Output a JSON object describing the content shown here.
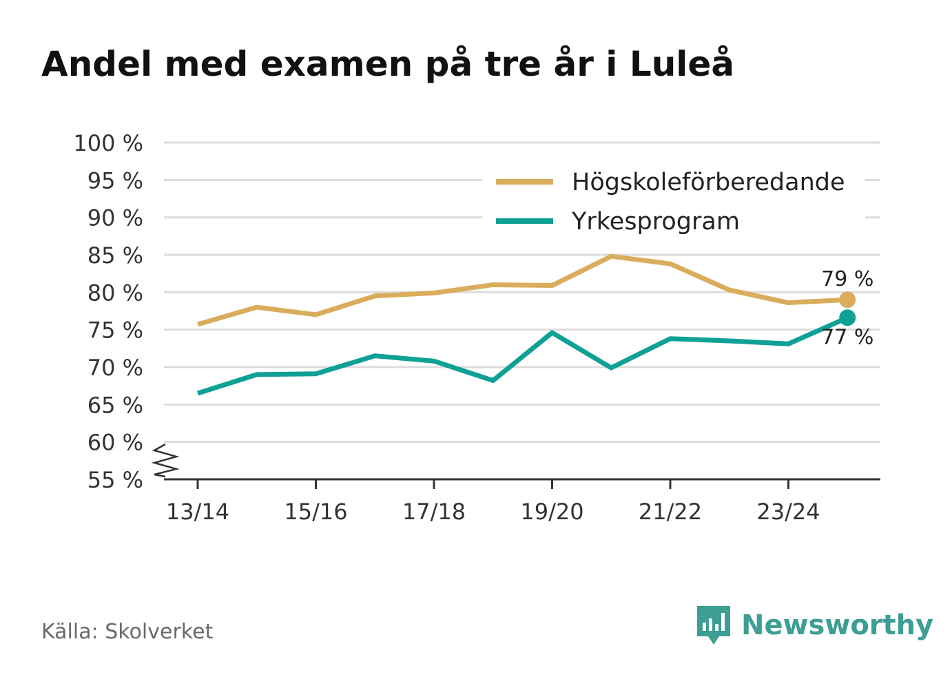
{
  "chart_data": {
    "type": "line",
    "title": "Andel med examen på tre år i Luleå",
    "categories": [
      "13/14",
      "14/15",
      "15/16",
      "16/17",
      "17/18",
      "18/19",
      "19/20",
      "20/21",
      "21/22",
      "22/23",
      "23/24",
      "24/25"
    ],
    "x_tick_labels": [
      "13/14",
      "15/16",
      "17/18",
      "19/20",
      "21/22",
      "23/24"
    ],
    "y_tick_labels": [
      "100 %",
      "95 %",
      "90 %",
      "85 %",
      "80 %",
      "75 %",
      "70 %",
      "65 %",
      "60 %",
      "55 %"
    ],
    "ylim": [
      55,
      100
    ],
    "y_axis_break": true,
    "grid": true,
    "legend_position": "top-right",
    "series": [
      {
        "name": "Högskoleförberedande",
        "color": "#d9ad5b",
        "values": [
          75.7,
          78.0,
          77.0,
          79.5,
          79.9,
          81.0,
          80.9,
          84.8,
          83.8,
          80.3,
          78.6,
          79.0
        ],
        "end_label": "79 %"
      },
      {
        "name": "Yrkesprogram",
        "color": "#0fa096",
        "values": [
          66.5,
          69.0,
          69.1,
          71.5,
          70.8,
          68.2,
          74.6,
          69.9,
          73.8,
          73.5,
          73.1,
          76.6
        ],
        "end_label": "77 %"
      }
    ]
  },
  "footer": {
    "source": "Källa: Skolverket",
    "brand": "Newsworthy",
    "brand_color": "#3d9e93"
  }
}
